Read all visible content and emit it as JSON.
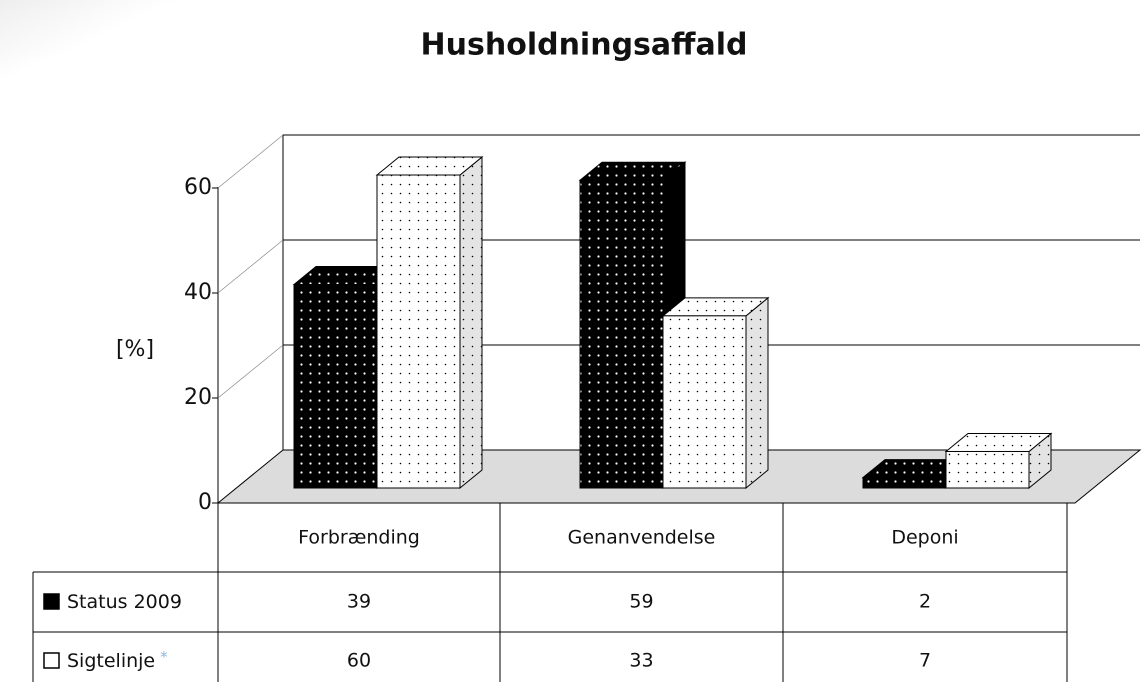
{
  "chart_data": {
    "type": "bar3d",
    "title": "Husholdningsaffald",
    "y_label": "[%]",
    "categories": [
      "Forbrænding",
      "Genanvendelse",
      "Deponi"
    ],
    "series": [
      {
        "name": "Status 2009",
        "color": "#000000",
        "values": [
          39,
          59,
          2
        ]
      },
      {
        "name": "Sigtelinje",
        "color": "#ffffff",
        "values": [
          60,
          33,
          7
        ],
        "note_marker": "*"
      }
    ],
    "ylim": [
      0,
      60
    ],
    "yticks": [
      0,
      20,
      40,
      60
    ],
    "grid": true,
    "data_table": true
  }
}
